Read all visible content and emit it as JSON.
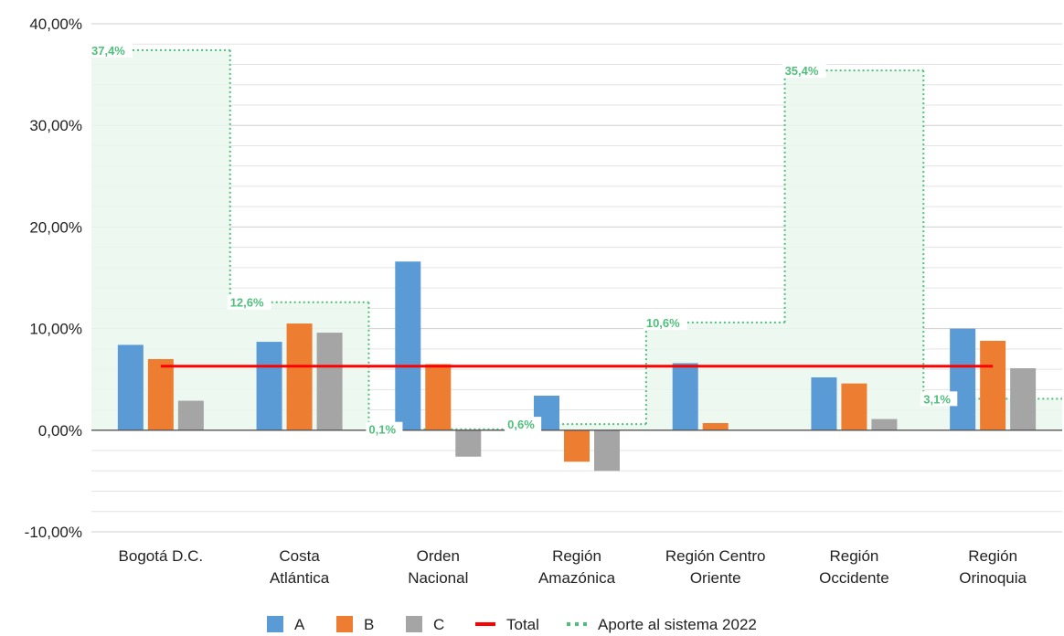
{
  "chart_data": {
    "type": "bar",
    "categories": [
      "Bogotá D.C.",
      "Costa\nAtlántica",
      "Orden\nNacional",
      "Región\nAmazónica",
      "Región Centro\nOriente",
      "Región\nOccidente",
      "Región\nOrinoquia"
    ],
    "series": [
      {
        "name": "A",
        "color": "#5b9bd5",
        "values": [
          8.4,
          8.7,
          16.6,
          3.4,
          6.6,
          5.2,
          10.0
        ]
      },
      {
        "name": "B",
        "color": "#ed7d31",
        "values": [
          7.0,
          10.5,
          6.5,
          -3.1,
          0.7,
          4.6,
          8.8
        ]
      },
      {
        "name": "C",
        "color": "#a5a5a5",
        "values": [
          2.9,
          9.6,
          -2.6,
          -4.0,
          0.0,
          1.1,
          6.1
        ]
      }
    ],
    "total": {
      "name": "Total",
      "color": "#ff0000",
      "value": 6.3
    },
    "aporte": {
      "name": "Aporte al sistema 2022",
      "color": "#4fbf7b",
      "values": [
        37.4,
        12.6,
        0.1,
        0.6,
        10.6,
        35.4,
        3.1
      ],
      "labels": [
        "37,4%",
        "12,6%",
        "0,1%",
        "0,6%",
        "10,6%",
        "35,4%",
        "3,1%"
      ]
    },
    "yticks": [
      "-10,00%",
      "0,00%",
      "10,00%",
      "20,00%",
      "30,00%",
      "40,00%"
    ],
    "ylim": [
      -10,
      40
    ],
    "grid": true,
    "legend": "bottom"
  }
}
